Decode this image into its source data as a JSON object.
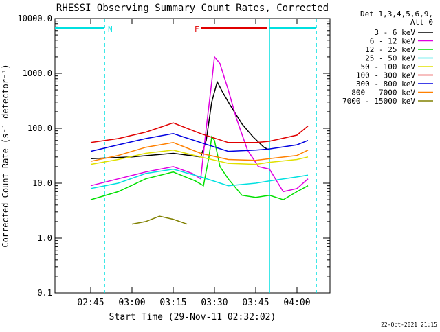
{
  "chart_data": {
    "type": "line",
    "title": "RHESSI Observing Summary Count Rates, Corrected",
    "xlabel": "Start Time (29-Nov-11 02:32:02)",
    "ylabel": "Corrected Count Rate (s⁻¹ detector⁻¹)",
    "yscale": "log",
    "ylim": [
      0.1,
      10000
    ],
    "xlim": [
      "02:32",
      "04:12"
    ],
    "xticks": [
      "02:45",
      "03:00",
      "03:15",
      "03:30",
      "03:45",
      "04:00"
    ],
    "ytick_labels": [
      "0.1",
      "1.0",
      "10.0",
      "100.0",
      "1000.0",
      "10000.0"
    ],
    "legend_header": [
      "Det 1,3,4,5,6,9,",
      "Att 0"
    ],
    "legend_position": "right",
    "footer_date": "22-Oct-2021 21:15",
    "grid": false,
    "bars": [
      {
        "label": "N",
        "color": "#00e0e0",
        "start": "02:32",
        "end": "02:50"
      },
      {
        "label": "F",
        "color": "#e00000",
        "start": "03:25",
        "end": "03:49"
      },
      {
        "label": "",
        "color": "#00e0e0",
        "start": "03:50",
        "end": "04:07"
      }
    ],
    "vlines": [
      {
        "time": "02:50",
        "color": "#00e0e0",
        "style": "dashed"
      },
      {
        "time": "03:50",
        "color": "#00e0e0",
        "style": "solid"
      },
      {
        "time": "04:07",
        "color": "#00e0e0",
        "style": "dashed"
      }
    ],
    "series": [
      {
        "name": "3 - 6 keV",
        "color": "#000000",
        "points": [
          [
            "02:45",
            28
          ],
          [
            "03:00",
            30
          ],
          [
            "03:15",
            35
          ],
          [
            "03:25",
            30
          ],
          [
            "03:27",
            60
          ],
          [
            "03:29",
            300
          ],
          [
            "03:31",
            700
          ],
          [
            "03:33",
            450
          ],
          [
            "03:36",
            250
          ],
          [
            "03:40",
            120
          ],
          [
            "03:44",
            70
          ],
          [
            "03:48",
            45
          ],
          [
            "03:50",
            40
          ]
        ]
      },
      {
        "name": "6 - 12 keV",
        "color": "#e000e0",
        "points": [
          [
            "02:45",
            9
          ],
          [
            "02:55",
            12
          ],
          [
            "03:05",
            16
          ],
          [
            "03:15",
            20
          ],
          [
            "03:22",
            15
          ],
          [
            "03:25",
            12
          ],
          [
            "03:27",
            100
          ],
          [
            "03:29",
            700
          ],
          [
            "03:30",
            2000
          ],
          [
            "03:32",
            1500
          ],
          [
            "03:35",
            500
          ],
          [
            "03:38",
            150
          ],
          [
            "03:42",
            40
          ],
          [
            "03:46",
            20
          ],
          [
            "03:50",
            18
          ],
          [
            "03:55",
            7
          ],
          [
            "04:00",
            8
          ],
          [
            "04:04",
            12
          ]
        ]
      },
      {
        "name": "12 - 25 keV",
        "color": "#00e000",
        "points": [
          [
            "02:45",
            5
          ],
          [
            "02:55",
            7
          ],
          [
            "03:05",
            12
          ],
          [
            "03:15",
            16
          ],
          [
            "03:23",
            11
          ],
          [
            "03:26",
            9
          ],
          [
            "03:28",
            30
          ],
          [
            "03:29",
            70
          ],
          [
            "03:30",
            60
          ],
          [
            "03:32",
            20
          ],
          [
            "03:35",
            12
          ],
          [
            "03:40",
            6
          ],
          [
            "03:45",
            5.5
          ],
          [
            "03:50",
            6
          ],
          [
            "03:55",
            5
          ],
          [
            "04:00",
            7
          ],
          [
            "04:04",
            9
          ]
        ]
      },
      {
        "name": "25 - 50 keV",
        "color": "#00e0e0",
        "points": [
          [
            "02:45",
            8
          ],
          [
            "02:55",
            10
          ],
          [
            "03:05",
            15
          ],
          [
            "03:15",
            18
          ],
          [
            "03:25",
            13
          ],
          [
            "03:35",
            9
          ],
          [
            "03:45",
            10
          ],
          [
            "03:50",
            11
          ],
          [
            "04:00",
            13
          ],
          [
            "04:04",
            14
          ]
        ]
      },
      {
        "name": "50 - 100 keV",
        "color": "#e0e000",
        "points": [
          [
            "02:45",
            22
          ],
          [
            "02:55",
            27
          ],
          [
            "03:05",
            35
          ],
          [
            "03:15",
            40
          ],
          [
            "03:25",
            30
          ],
          [
            "03:35",
            23
          ],
          [
            "03:45",
            22
          ],
          [
            "03:50",
            24
          ],
          [
            "04:00",
            27
          ],
          [
            "04:04",
            30
          ]
        ]
      },
      {
        "name": "100 - 300 keV",
        "color": "#e00000",
        "points": [
          [
            "02:45",
            55
          ],
          [
            "02:55",
            65
          ],
          [
            "03:05",
            85
          ],
          [
            "03:15",
            125
          ],
          [
            "03:25",
            80
          ],
          [
            "03:35",
            55
          ],
          [
            "03:45",
            55
          ],
          [
            "03:50",
            58
          ],
          [
            "04:00",
            75
          ],
          [
            "04:04",
            110
          ]
        ]
      },
      {
        "name": "300 - 800 keV",
        "color": "#0000e0",
        "points": [
          [
            "02:45",
            38
          ],
          [
            "02:55",
            50
          ],
          [
            "03:05",
            65
          ],
          [
            "03:15",
            80
          ],
          [
            "03:25",
            55
          ],
          [
            "03:35",
            38
          ],
          [
            "03:45",
            40
          ],
          [
            "03:50",
            42
          ],
          [
            "04:00",
            50
          ],
          [
            "04:04",
            60
          ]
        ]
      },
      {
        "name": "800 - 7000 keV",
        "color": "#ff8000",
        "points": [
          [
            "02:45",
            25
          ],
          [
            "02:55",
            32
          ],
          [
            "03:05",
            45
          ],
          [
            "03:15",
            55
          ],
          [
            "03:25",
            35
          ],
          [
            "03:35",
            27
          ],
          [
            "03:45",
            26
          ],
          [
            "03:50",
            28
          ],
          [
            "04:00",
            32
          ],
          [
            "04:04",
            40
          ]
        ]
      },
      {
        "name": "7000 - 15000 keV",
        "color": "#808000",
        "points": [
          [
            "03:00",
            1.8
          ],
          [
            "03:05",
            2.0
          ],
          [
            "03:10",
            2.5
          ],
          [
            "03:15",
            2.2
          ],
          [
            "03:20",
            1.8
          ]
        ]
      }
    ]
  }
}
